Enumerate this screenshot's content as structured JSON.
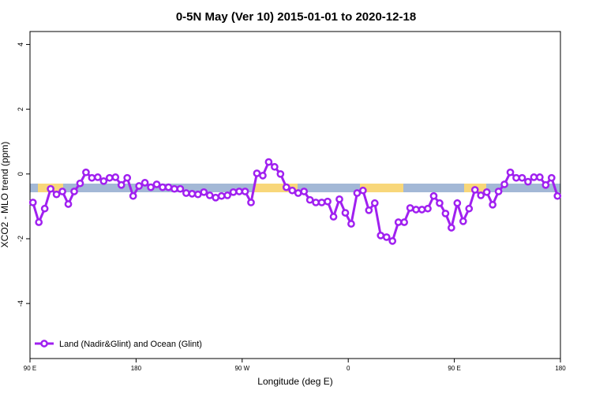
{
  "chart_data": {
    "type": "line",
    "title": "0-5N May (Ver 10)   2015-01-01 to 2020-12-18",
    "x_label": "Longitude (deg E)",
    "y_label": "XCO2 - MLO trend (ppm)",
    "x": [
      92.5,
      97.5,
      102.5,
      107.5,
      112.5,
      117.5,
      122.5,
      127.5,
      132.5,
      137.5,
      142.5,
      147.5,
      152.5,
      157.5,
      162.5,
      167.5,
      172.5,
      177.5,
      182.5,
      187.5,
      192.5,
      197.5,
      202.5,
      207.5,
      212.5,
      217.5,
      222.5,
      227.5,
      232.5,
      237.5,
      242.5,
      247.5,
      252.5,
      257.5,
      262.5,
      267.5,
      272.5,
      277.5,
      282.5,
      287.5,
      292.5,
      297.5,
      302.5,
      307.5,
      312.5,
      317.5,
      322.5,
      327.5,
      332.5,
      337.5,
      342.5,
      347.5,
      352.5,
      357.5,
      362.5,
      367.5,
      372.5,
      377.5,
      382.5,
      387.5,
      392.5,
      397.5,
      402.5,
      407.5,
      412.5,
      417.5,
      422.5,
      427.5,
      432.5,
      437.5,
      442.5,
      447.5,
      452.5,
      457.5,
      462.5,
      467.5,
      472.5,
      477.5,
      482.5,
      487.5,
      492.5,
      497.5,
      502.5,
      507.5,
      512.5,
      517.5,
      522.5,
      527.5,
      532.5,
      537.5
    ],
    "series": [
      {
        "name": "Land (Nadir&Glint) and Ocean (Glint)",
        "color": "#a020f0",
        "values": [
          -0.88,
          -1.49,
          -1.07,
          -0.46,
          -0.63,
          -0.54,
          -0.93,
          -0.54,
          -0.29,
          0.05,
          -0.12,
          -0.1,
          -0.22,
          -0.12,
          -0.1,
          -0.34,
          -0.12,
          -0.68,
          -0.37,
          -0.27,
          -0.41,
          -0.32,
          -0.41,
          -0.41,
          -0.46,
          -0.46,
          -0.59,
          -0.61,
          -0.63,
          -0.56,
          -0.66,
          -0.73,
          -0.68,
          -0.66,
          -0.56,
          -0.54,
          -0.54,
          -0.88,
          0.02,
          -0.05,
          0.37,
          0.22,
          0,
          -0.41,
          -0.51,
          -0.59,
          -0.54,
          -0.8,
          -0.88,
          -0.88,
          -0.85,
          -1.32,
          -0.78,
          -1.2,
          -1.54,
          -0.59,
          -0.51,
          -1.12,
          -0.9,
          -1.9,
          -1.95,
          -2.07,
          -1.49,
          -1.49,
          -1.05,
          -1.1,
          -1.1,
          -1.07,
          -0.68,
          -0.9,
          -1.22,
          -1.66,
          -0.9,
          -1.46,
          -1.07,
          -0.49,
          -0.66,
          -0.56,
          -0.95,
          -0.54,
          -0.32,
          0.05,
          -0.12,
          -0.12,
          -0.24,
          -0.1,
          -0.1,
          -0.34,
          -0.12,
          -0.68
        ]
      }
    ],
    "xlim": [
      90,
      540
    ],
    "xticks": [
      {
        "value": 90,
        "label": "90 E"
      },
      180,
      {
        "value": 270,
        "label": "90 W"
      },
      {
        "value": 360,
        "label": "0"
      },
      {
        "value": 450,
        "label": "90 E"
      },
      {
        "value": 540,
        "label": "180"
      }
    ],
    "ylim": [
      -5.7,
      4.4
    ],
    "yticks": [
      4,
      2,
      0,
      -2,
      -4
    ],
    "legend": "bottom-left"
  }
}
